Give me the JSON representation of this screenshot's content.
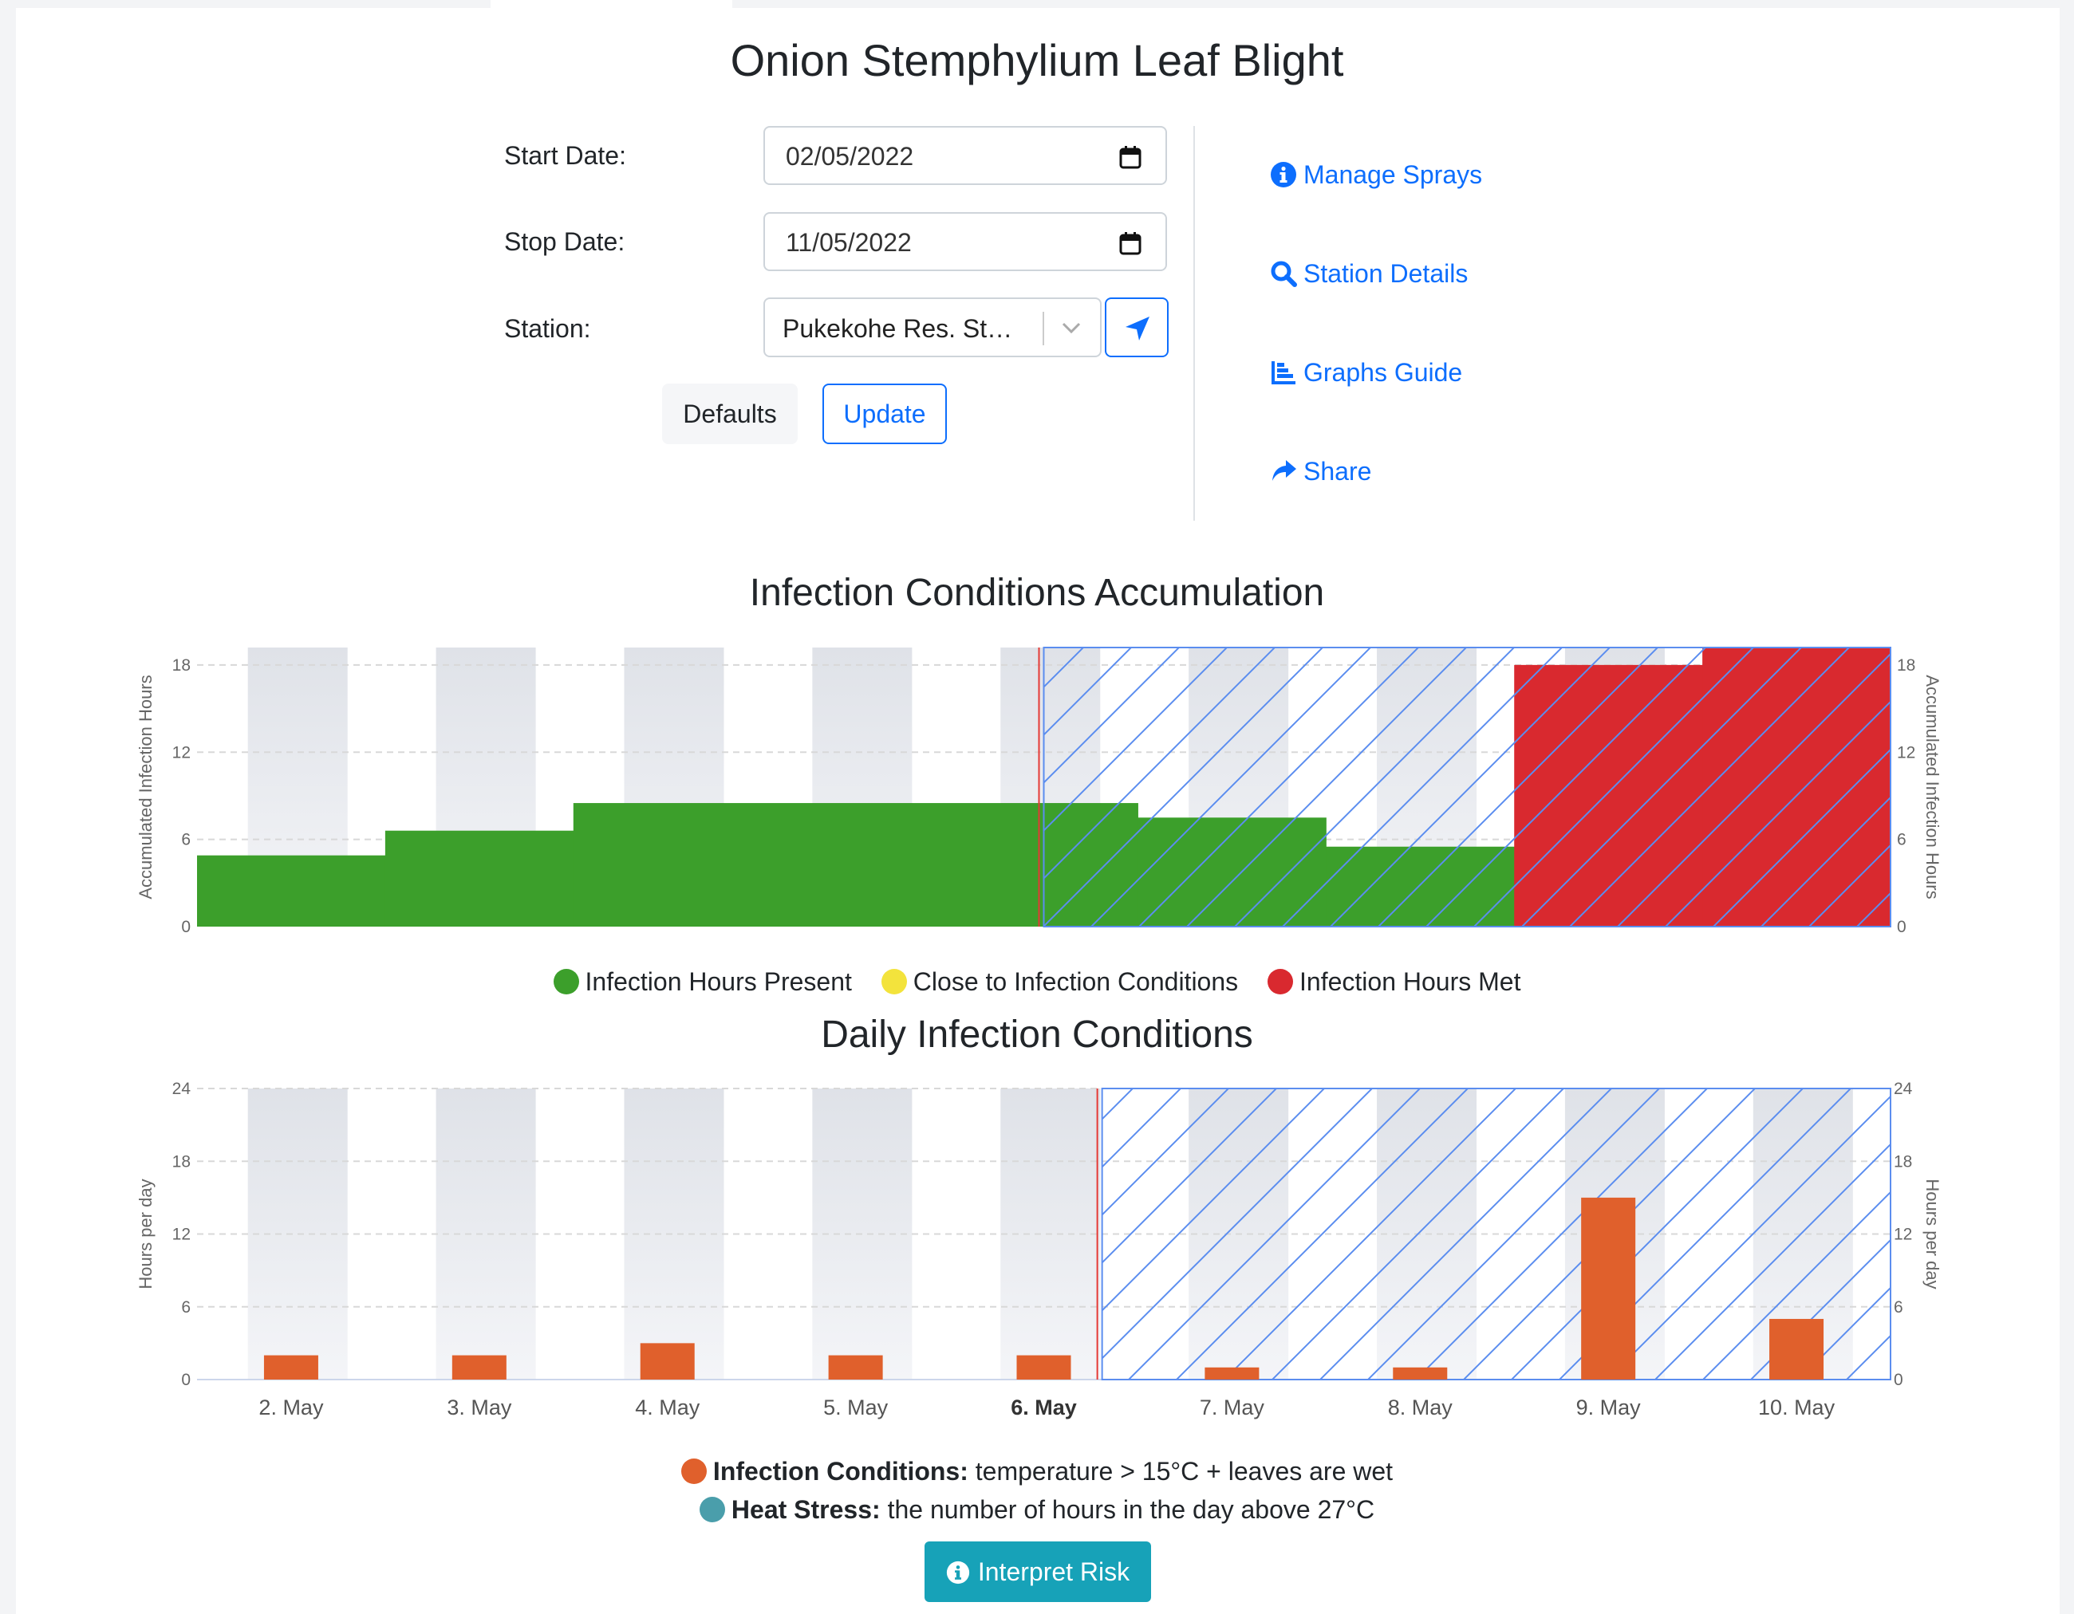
{
  "page": {
    "title": "Onion Stemphylium Leaf Blight"
  },
  "form": {
    "start_label": "Start Date:",
    "start_value": "02/05/2022",
    "stop_label": "Stop Date:",
    "stop_value": "11/05/2022",
    "station_label": "Station:",
    "station_value": "Pukekohe Res. St…",
    "defaults_label": "Defaults",
    "update_label": "Update"
  },
  "links": [
    {
      "label": "Manage Sprays",
      "icon": "info-circle-icon"
    },
    {
      "label": "Station Details",
      "icon": "search-icon"
    },
    {
      "label": "Graphs Guide",
      "icon": "chart-bar-icon"
    },
    {
      "label": "Share",
      "icon": "share-icon"
    }
  ],
  "colors": {
    "green": "#3c9f2b",
    "red": "#d9292f",
    "yellow": "#f3e33c",
    "orange": "#e0602c",
    "teal": "#4a9eab",
    "link_blue": "#0d6efd",
    "forecast_hatch": "#5b8def"
  },
  "chart_data": [
    {
      "type": "area",
      "title": "Infection Conditions Accumulation",
      "ylabel": "Accumulated Infection Hours",
      "ylabel_right": "Accumulated Infection Hours",
      "ylim": [
        0,
        19.2
      ],
      "yticks": [
        0,
        6,
        12,
        18
      ],
      "x_domain": [
        1.5,
        10.5
      ],
      "forecast_start": 6.0,
      "grid": true,
      "legend_position": "bottom",
      "series": [
        {
          "name": "Infection Hours Present",
          "color": "#3c9f2b"
        },
        {
          "name": "Close to Infection Conditions",
          "color": "#f3e33c"
        },
        {
          "name": "Infection Hours Met",
          "color": "#d9292f"
        }
      ],
      "steps": [
        {
          "x0": 1.5,
          "x1": 2.5,
          "value": 4.9,
          "status": "present"
        },
        {
          "x0": 2.5,
          "x1": 3.5,
          "value": 6.6,
          "status": "present"
        },
        {
          "x0": 3.5,
          "x1": 6.5,
          "value": 8.5,
          "status": "present"
        },
        {
          "x0": 6.5,
          "x1": 7.5,
          "value": 7.5,
          "status": "present"
        },
        {
          "x0": 7.5,
          "x1": 8.5,
          "value": 5.5,
          "status": "present"
        },
        {
          "x0": 8.5,
          "x1": 9.5,
          "value": 18.0,
          "status": "met"
        },
        {
          "x0": 9.5,
          "x1": 10.5,
          "value": 19.2,
          "status": "met"
        }
      ]
    },
    {
      "type": "bar",
      "title": "Daily Infection Conditions",
      "ylabel": "Hours per day",
      "ylabel_right": "Hours per day",
      "ylim": [
        0,
        24
      ],
      "yticks": [
        0,
        6,
        12,
        18,
        24
      ],
      "categories": [
        "2. May",
        "3. May",
        "4. May",
        "5. May",
        "6. May",
        "7. May",
        "8. May",
        "9. May",
        "10. May"
      ],
      "bold_category": "6. May",
      "forecast_start": 6.0,
      "grid": true,
      "legend_position": "bottom",
      "series": [
        {
          "name": "Infection Conditions",
          "values": [
            2,
            2,
            3,
            2,
            2,
            1,
            1,
            15,
            5
          ],
          "color": "#e0602c"
        },
        {
          "name": "Heat Stress",
          "values": [
            0,
            0,
            0,
            0,
            0,
            0,
            0,
            0,
            0
          ],
          "color": "#4a9eab"
        }
      ]
    }
  ],
  "legend_daily": [
    {
      "bold": "Infection Conditions:",
      "text": " temperature > 15°C + leaves are wet"
    },
    {
      "bold": "Heat Stress:",
      "text": " the number of hours in the day above 27°C"
    }
  ],
  "interpret_button": {
    "label": "Interpret Risk"
  }
}
